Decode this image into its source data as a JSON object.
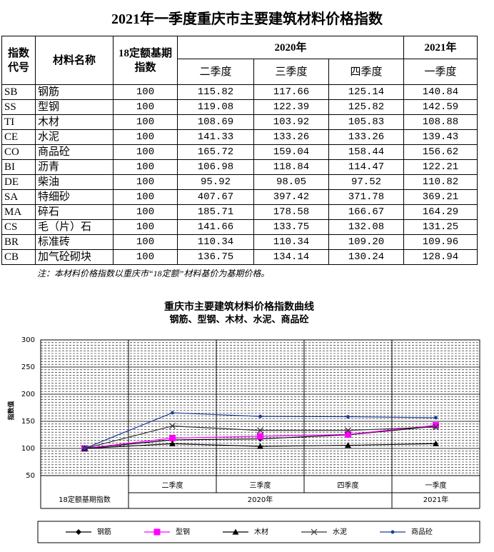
{
  "title": "2021年一季度重庆市主要建筑材料价格指数",
  "table": {
    "header": {
      "code": "指数代号",
      "name": "材料名称",
      "base": "18定额基期指数",
      "year2020": "2020年",
      "year2021": "2021年",
      "quarters": [
        "二季度",
        "三季度",
        "四季度",
        "一季度"
      ]
    },
    "rows": [
      [
        "SB",
        "钢筋",
        "100",
        "115.82",
        "117.66",
        "125.14",
        "140.84"
      ],
      [
        "SS",
        "型钢",
        "100",
        "119.08",
        "122.39",
        "125.82",
        "142.59"
      ],
      [
        "TI",
        "木材",
        "100",
        "108.69",
        "103.92",
        "105.83",
        "108.88"
      ],
      [
        "CE",
        "水泥",
        "100",
        "141.33",
        "133.26",
        "133.26",
        "139.43"
      ],
      [
        "CO",
        "商品砼",
        "100",
        "165.72",
        "159.04",
        "158.44",
        "156.62"
      ],
      [
        "BI",
        "沥青",
        "100",
        "106.98",
        "118.84",
        "114.47",
        "122.21"
      ],
      [
        "DE",
        "柴油",
        "100",
        "95.92",
        "98.05",
        "97.52",
        "110.82"
      ],
      [
        "SA",
        "特细砂",
        "100",
        "407.67",
        "397.42",
        "371.78",
        "369.21"
      ],
      [
        "MA",
        "碎石",
        "100",
        "185.71",
        "178.58",
        "166.67",
        "164.29"
      ],
      [
        "CS",
        "毛（片）石",
        "100",
        "141.66",
        "133.75",
        "132.08",
        "131.25"
      ],
      [
        "BR",
        "标准砖",
        "100",
        "110.34",
        "110.34",
        "109.20",
        "109.96"
      ],
      [
        "CB",
        "加气砼砌块",
        "100",
        "136.75",
        "134.14",
        "130.24",
        "128.94"
      ]
    ]
  },
  "note": "注：本材料价格指数以重庆市“18定额”材料基价为基期价格。",
  "chart_data": {
    "type": "line",
    "title": "重庆市主要建筑材料价格指数曲线",
    "subtitle": "钢筋、型钢、木材、水泥、商品砼",
    "y_label": "指数值",
    "categories": [
      "18定额基期指数",
      "二季度",
      "三季度",
      "四季度",
      "一季度"
    ],
    "category_groups": [
      "2020年",
      "2021年"
    ],
    "ylim": [
      50,
      300
    ],
    "yticks": [
      50,
      100,
      150,
      200,
      250,
      300
    ],
    "grid": true,
    "minor_grid_step": 5,
    "legend": "bottom",
    "series": [
      {
        "name": "钢筋",
        "color": "#000000",
        "marker": "diamond",
        "values": [
          100,
          115.82,
          117.66,
          125.14,
          140.84
        ]
      },
      {
        "name": "型钢",
        "color": "#ff00ff",
        "marker": "square",
        "values": [
          100,
          119.08,
          122.39,
          125.82,
          142.59
        ]
      },
      {
        "name": "木材",
        "color": "#000000",
        "marker": "triangle",
        "values": [
          100,
          108.69,
          103.92,
          105.83,
          108.88
        ]
      },
      {
        "name": "水泥",
        "color": "#333333",
        "marker": "x",
        "values": [
          100,
          141.33,
          133.26,
          133.26,
          139.43
        ]
      },
      {
        "name": "商品砼",
        "color": "#1f3f99",
        "marker": "circle",
        "values": [
          100,
          165.72,
          159.04,
          158.44,
          156.62
        ]
      }
    ]
  }
}
